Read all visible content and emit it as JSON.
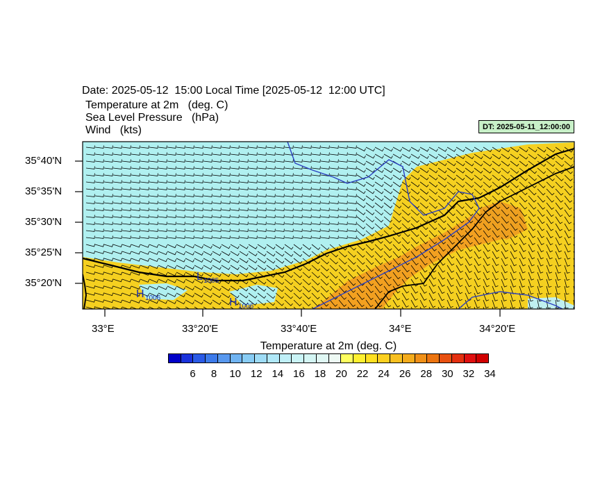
{
  "header": {
    "date_line": "Date: 2025-05-12  15:00 Local Time [2025-05-12  12:00 UTC]",
    "variables": [
      "Temperature at 2m   (deg. C)",
      "Sea Level Pressure   (hPa)",
      "Wind   (kts)"
    ],
    "dt_label": "DT: 2025-05-11_12:00:00"
  },
  "map": {
    "lat_labels": [
      "35°40'N",
      "35°35'N",
      "35°30'N",
      "35°25'N",
      "35°20'N"
    ],
    "lon_labels": [
      "33°E",
      "33°20'E",
      "33°40'E",
      "34°E",
      "34°20'E"
    ],
    "pressure_labels": [
      {
        "symbol": "L",
        "value": "1005"
      },
      {
        "symbol": "H",
        "value": "1006"
      },
      {
        "symbol": "H",
        "value": "1006"
      }
    ],
    "colors": {
      "sea": "#b0f0f0",
      "land_warm": "#f5d020",
      "land_hot": "#f2a020",
      "isobar": "#2a3fc0"
    }
  },
  "colorbar": {
    "title": "Temperature at 2m  (deg. C)",
    "labels": [
      "6",
      "8",
      "10",
      "12",
      "14",
      "16",
      "18",
      "20",
      "22",
      "24",
      "26",
      "28",
      "30",
      "32",
      "34"
    ],
    "colors": [
      "#0000c8",
      "#1a32dc",
      "#2a5ae6",
      "#3c7aea",
      "#5898ee",
      "#70b4f2",
      "#88ccf4",
      "#9edcf6",
      "#b0e8f8",
      "#c0f0f8",
      "#caf4f6",
      "#d4f6f4",
      "#e0f8f4",
      "#eefaf4",
      "#ffff60",
      "#fff030",
      "#ffe020",
      "#fcd020",
      "#f8c020",
      "#f4ac1c",
      "#f09018",
      "#ec7410",
      "#e85010",
      "#e43010",
      "#e01010",
      "#d00000"
    ]
  }
}
